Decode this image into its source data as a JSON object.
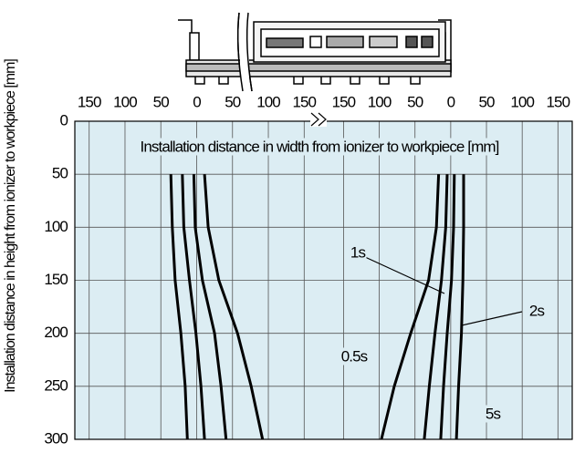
{
  "chart_data": [
    {
      "type": "line",
      "title": "Installation distance in width from ionizer to workpiece [mm]",
      "ylabel": "Installation distance in height from ionizer to workpiece [mm]",
      "xlim": [
        -170,
        170
      ],
      "xticks": [
        {
          "value": -150,
          "label": "150"
        },
        {
          "value": -100,
          "label": "100"
        },
        {
          "value": -50,
          "label": "50"
        },
        0,
        50,
        100,
        150
      ],
      "ylim": [
        0,
        300
      ],
      "y_inverted": true,
      "yticks": [
        0,
        50,
        100,
        150,
        200,
        250,
        300
      ],
      "grid": true,
      "background": "#dcedf3",
      "series": [
        {
          "color": "#000000",
          "x": [
            -36,
            -34,
            -30,
            -22,
            -16,
            -13
          ],
          "values": [
            50,
            100,
            150,
            200,
            250,
            300
          ]
        },
        {
          "color": "#000000",
          "x": [
            -20,
            -18,
            -10,
            -1,
            6,
            11
          ],
          "values": [
            50,
            100,
            150,
            200,
            250,
            300
          ]
        },
        {
          "color": "#000000",
          "x": [
            -4,
            -2,
            8,
            25,
            34,
            41
          ],
          "values": [
            50,
            100,
            150,
            200,
            250,
            300
          ]
        },
        {
          "color": "#000000",
          "x": [
            11,
            16,
            31,
            57,
            76,
            92
          ],
          "values": [
            50,
            100,
            150,
            200,
            250,
            300
          ]
        }
      ]
    },
    {
      "type": "line",
      "xlim": [
        -185,
        170
      ],
      "xticks": [
        {
          "value": -150,
          "label": "150"
        },
        {
          "value": -100,
          "label": "100"
        },
        {
          "value": -50,
          "label": "50"
        },
        0,
        50,
        100,
        150
      ],
      "ylim": [
        0,
        300
      ],
      "y_inverted": true,
      "grid": true,
      "series": [
        {
          "name": "0.5s",
          "color": "#000000",
          "x": [
            -17,
            -20,
            -31,
            -56,
            -79,
            -97
          ],
          "values": [
            50,
            100,
            150,
            200,
            250,
            300
          ]
        },
        {
          "name": "1s",
          "color": "#000000",
          "x": [
            -5,
            -7,
            -13,
            -22,
            -30,
            -37
          ],
          "values": [
            50,
            100,
            150,
            200,
            250,
            300
          ]
        },
        {
          "name": "2s",
          "color": "#000000",
          "x": [
            5,
            4,
            1,
            -5,
            -10,
            -14
          ],
          "values": [
            50,
            100,
            150,
            200,
            250,
            300
          ]
        },
        {
          "name": "5s",
          "color": "#000000",
          "x": [
            18,
            18,
            17,
            15,
            11,
            8
          ],
          "values": [
            50,
            100,
            150,
            200,
            250,
            300
          ]
        }
      ]
    }
  ]
}
